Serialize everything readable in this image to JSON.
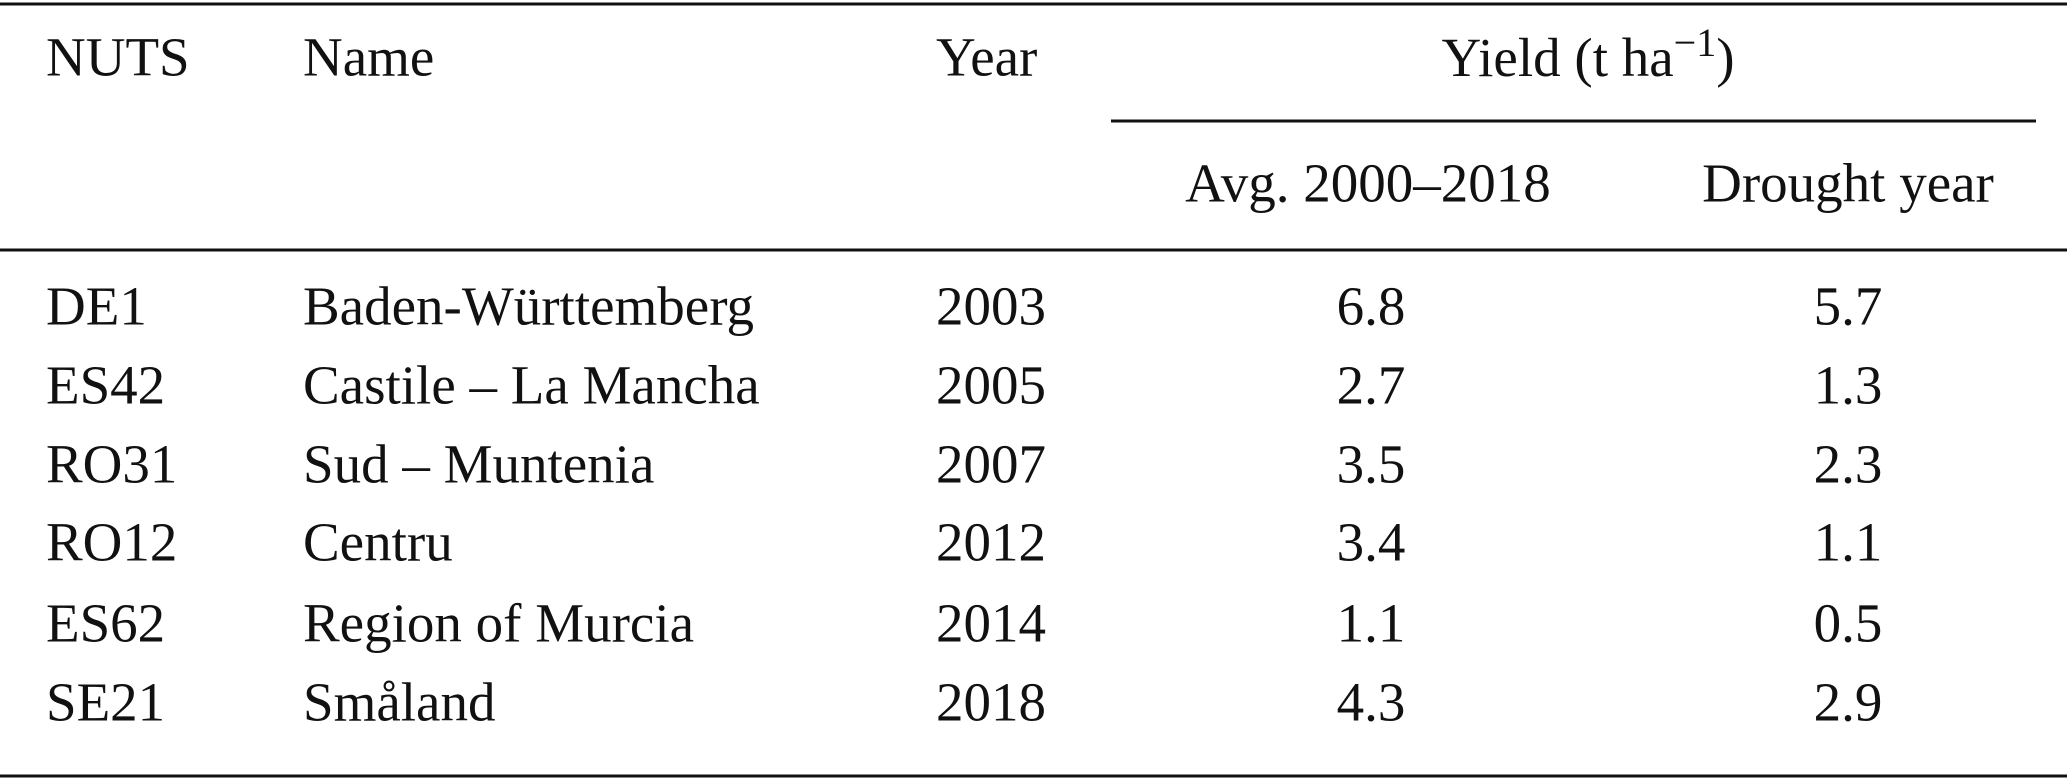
{
  "table": {
    "columns": [
      "NUTS",
      "Name",
      "Year"
    ],
    "group": {
      "text": "Yield (t ha",
      "sup": "−1",
      "end": ")"
    },
    "subcolumns": [
      "Avg. 2000–2018",
      "Drought year"
    ],
    "rows": [
      [
        "DE1",
        "Baden-Württemberg",
        2003,
        6.8,
        5.7
      ],
      [
        "ES42",
        "Castile – La Mancha",
        2005,
        2.7,
        1.3
      ],
      [
        "RO31",
        "Sud – Muntenia",
        2007,
        3.5,
        2.3
      ],
      [
        "RO12",
        "Centru",
        2012,
        3.4,
        1.1
      ],
      [
        "ES62",
        "Region of Murcia",
        2014,
        1.1,
        0.5
      ],
      [
        "SE21",
        "Småland",
        2018,
        4.3,
        2.9
      ]
    ]
  }
}
